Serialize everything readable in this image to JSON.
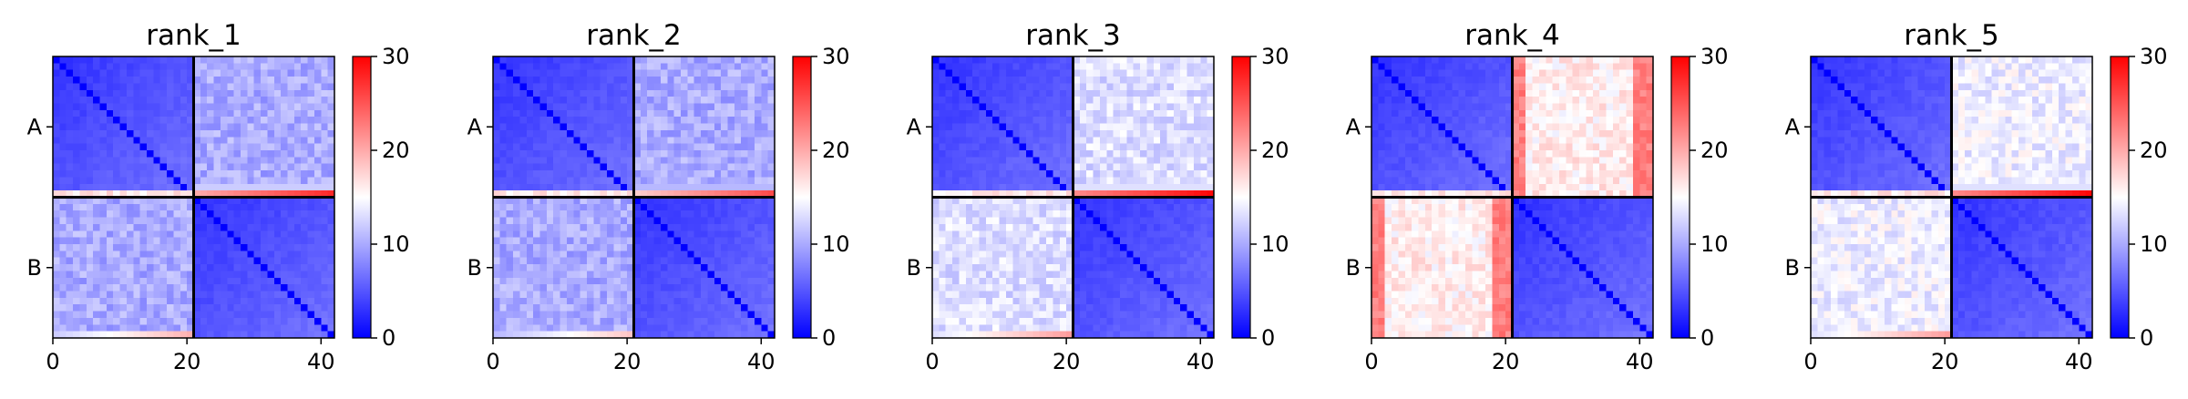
{
  "figure": {
    "colormap": {
      "low": "#0000ff",
      "mid": "#ffffff",
      "high": "#ff0000"
    }
  },
  "chart_data": [
    {
      "type": "heatmap",
      "title": "rank_1",
      "x_ticks": [
        0,
        20,
        40
      ],
      "x_tick_labels": [
        "0",
        "20",
        "40"
      ],
      "y_tick_labels": [
        "A",
        "B"
      ],
      "xlim": [
        0,
        42
      ],
      "matrix_size": 42,
      "block_boundary": 21,
      "colorbar": {
        "ticks": [
          0,
          10,
          20,
          30
        ],
        "labels": [
          "0",
          "10",
          "20",
          "30"
        ],
        "vmin": 0,
        "vmax": 30
      },
      "block_means": {
        "within_A": 3,
        "within_B": 3,
        "between": 10
      },
      "edge_band": {
        "value": 20,
        "position": "last rows of A, last columns of B"
      }
    },
    {
      "type": "heatmap",
      "title": "rank_2",
      "x_ticks": [
        0,
        20,
        40
      ],
      "x_tick_labels": [
        "0",
        "20",
        "40"
      ],
      "y_tick_labels": [
        "A",
        "B"
      ],
      "xlim": [
        0,
        42
      ],
      "matrix_size": 42,
      "block_boundary": 21,
      "colorbar": {
        "ticks": [
          0,
          10,
          20,
          30
        ],
        "labels": [
          "0",
          "10",
          "20",
          "30"
        ],
        "vmin": 0,
        "vmax": 30
      },
      "block_means": {
        "within_A": 3,
        "within_B": 3,
        "between": 10
      },
      "edge_band": {
        "value": 18,
        "position": "last rows of A, last columns of B"
      }
    },
    {
      "type": "heatmap",
      "title": "rank_3",
      "x_ticks": [
        0,
        20,
        40
      ],
      "x_tick_labels": [
        "0",
        "20",
        "40"
      ],
      "y_tick_labels": [
        "A",
        "B"
      ],
      "xlim": [
        0,
        42
      ],
      "matrix_size": 42,
      "block_boundary": 21,
      "colorbar": {
        "ticks": [
          0,
          10,
          20,
          30
        ],
        "labels": [
          "0",
          "10",
          "20",
          "30"
        ],
        "vmin": 0,
        "vmax": 30
      },
      "block_means": {
        "within_A": 3,
        "within_B": 3,
        "between": 13
      },
      "edge_band": {
        "value": 22,
        "position": "last rows of A, last columns of B"
      }
    },
    {
      "type": "heatmap",
      "title": "rank_4",
      "x_ticks": [
        0,
        20,
        40
      ],
      "x_tick_labels": [
        "0",
        "20",
        "40"
      ],
      "y_tick_labels": [
        "A",
        "B"
      ],
      "xlim": [
        0,
        42
      ],
      "matrix_size": 42,
      "block_boundary": 21,
      "colorbar": {
        "ticks": [
          0,
          10,
          20,
          30
        ],
        "labels": [
          "0",
          "10",
          "20",
          "30"
        ],
        "vmin": 0,
        "vmax": 30
      },
      "block_means": {
        "within_A": 3,
        "within_B": 3,
        "between": 16
      },
      "edge_band": {
        "value": 21,
        "position": "first and last columns of off-diagonal blocks"
      }
    },
    {
      "type": "heatmap",
      "title": "rank_5",
      "x_ticks": [
        0,
        20,
        40
      ],
      "x_tick_labels": [
        "0",
        "20",
        "40"
      ],
      "y_tick_labels": [
        "A",
        "B"
      ],
      "xlim": [
        0,
        42
      ],
      "matrix_size": 42,
      "block_boundary": 21,
      "colorbar": {
        "ticks": [
          0,
          10,
          20,
          30
        ],
        "labels": [
          "0",
          "10",
          "20",
          "30"
        ],
        "vmin": 0,
        "vmax": 30
      },
      "block_means": {
        "within_A": 3,
        "within_B": 3,
        "between": 14
      },
      "edge_band": {
        "value": 22,
        "position": "last rows of A, last columns of B"
      }
    }
  ]
}
